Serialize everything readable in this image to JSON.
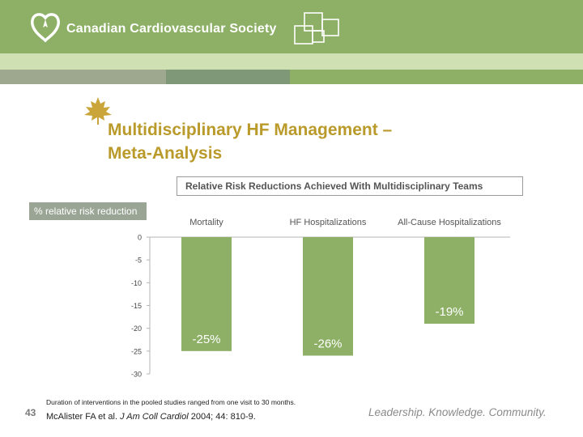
{
  "header": {
    "org_name": "Canadian Cardiovascular Society",
    "color_primary": "#8db066",
    "logo_icon": "heart-leaf-icon",
    "decor_icon": "overlapping-squares-icon"
  },
  "slide": {
    "title_line1": "Multidisciplinary HF Management –",
    "title_line2": "Meta-Analysis",
    "title_color": "#b99a2a",
    "footnote": "Duration of interventions in the pooled studies ranged from one visit to 30 months.",
    "citation_prefix": "McAlister FA et al. ",
    "citation_journal": "J Am Coll Cardiol",
    "citation_suffix": " 2004; 44: 810-9.",
    "page_number": "43",
    "tagline": "Leadership. Knowledge. Community."
  },
  "chart_data": {
    "type": "bar",
    "title": "Relative Risk Reductions Achieved With Multidisciplinary Teams",
    "ylabel": "% relative risk reduction",
    "xlabel": "",
    "categories": [
      "Mortality",
      "HF Hospitalizations",
      "All-Cause Hospitalizations"
    ],
    "values": [
      -25,
      -26,
      -19
    ],
    "data_labels": [
      "-25%",
      "-26%",
      "-19%"
    ],
    "ylim": [
      -30,
      0
    ],
    "yticks": [
      0,
      -5,
      -10,
      -15,
      -20,
      -25,
      -30
    ],
    "bar_color": "#8db066",
    "grid": false,
    "legend": "none"
  }
}
